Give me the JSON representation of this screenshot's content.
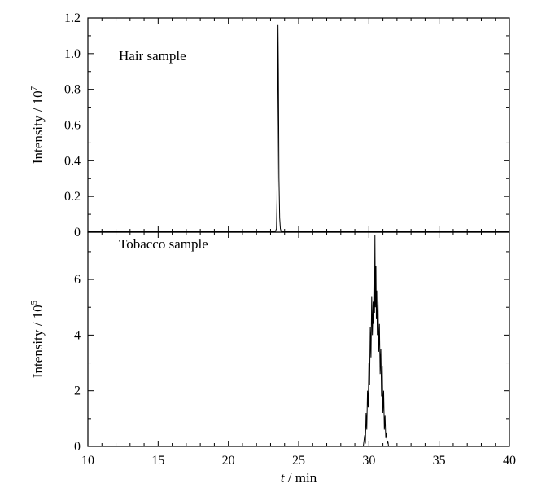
{
  "chart_data": [
    {
      "type": "line",
      "panel": "top",
      "annotation": "Hair sample",
      "ylabel_text": "Intensity / 10",
      "ylabel_exponent": "7",
      "xlim": [
        10,
        40
      ],
      "ylim": [
        0,
        1.2
      ],
      "y_ticks": [
        "0",
        "0.2",
        "0.4",
        "0.6",
        "0.8",
        "1.0",
        "1.2"
      ],
      "y_tick_values": [
        0,
        0.2,
        0.4,
        0.6,
        0.8,
        1.0,
        1.2
      ],
      "series": [
        {
          "x": [
            10,
            23.2,
            23.35,
            23.42,
            23.46,
            23.5,
            23.53,
            23.56,
            23.6,
            23.65,
            23.7,
            23.75,
            24,
            40
          ],
          "values": [
            0.002,
            0.002,
            0.005,
            0.02,
            0.18,
            0.65,
            1.16,
            0.9,
            0.3,
            0.08,
            0.02,
            0.005,
            0.002,
            0.002
          ]
        }
      ]
    },
    {
      "type": "line",
      "panel": "bottom",
      "annotation": "Tobacco sample",
      "ylabel_text": "Intensity / 10",
      "ylabel_exponent": "5",
      "xlabel_italic": "t",
      "xlabel_rest": " / min",
      "xlim": [
        10,
        40
      ],
      "ylim": [
        0,
        7.7
      ],
      "x_ticks": [
        "10",
        "15",
        "20",
        "25",
        "30",
        "35",
        "40"
      ],
      "x_tick_values": [
        10,
        15,
        20,
        25,
        30,
        35,
        40
      ],
      "y_ticks": [
        "0",
        "2",
        "4",
        "6"
      ],
      "y_tick_values": [
        0,
        2,
        4,
        6
      ],
      "series": [
        {
          "x": [
            10,
            29.6,
            29.7,
            29.75,
            29.8,
            29.85,
            29.9,
            29.95,
            30.0,
            30.05,
            30.1,
            30.15,
            30.2,
            30.25,
            30.3,
            30.33,
            30.36,
            30.4,
            30.43,
            30.46,
            30.5,
            30.53,
            30.56,
            30.6,
            30.65,
            30.7,
            30.75,
            30.8,
            30.85,
            30.9,
            30.95,
            31.0,
            31.05,
            31.1,
            31.15,
            31.2,
            31.25,
            31.3,
            31.35,
            31.4,
            40
          ],
          "values": [
            0,
            0,
            0.4,
            0.1,
            1.2,
            0.6,
            2.0,
            1.4,
            3.0,
            2.2,
            4.3,
            3.2,
            5.4,
            4.0,
            5.2,
            4.4,
            6.0,
            4.8,
            7.6,
            5.0,
            6.5,
            4.6,
            5.6,
            4.0,
            5.2,
            3.4,
            4.4,
            2.6,
            3.5,
            1.8,
            2.9,
            1.2,
            2.0,
            0.6,
            1.1,
            0.3,
            0.5,
            0.1,
            0.2,
            0,
            0
          ]
        }
      ]
    }
  ]
}
